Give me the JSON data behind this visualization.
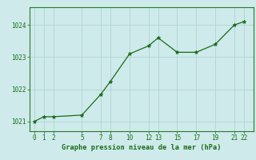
{
  "x": [
    0,
    1,
    2,
    5,
    7,
    8,
    10,
    12,
    13,
    15,
    17,
    19,
    21,
    22
  ],
  "y": [
    1021.0,
    1021.15,
    1021.15,
    1021.2,
    1021.85,
    1022.25,
    1023.1,
    1023.35,
    1023.6,
    1023.15,
    1023.15,
    1023.4,
    1024.0,
    1024.1
  ],
  "x_ticks": [
    0,
    1,
    2,
    5,
    7,
    8,
    10,
    12,
    13,
    15,
    17,
    19,
    21,
    22
  ],
  "y_ticks": [
    1021,
    1022,
    1023,
    1024
  ],
  "ylim": [
    1020.7,
    1024.55
  ],
  "xlim": [
    -0.5,
    23.0
  ],
  "line_color": "#1a6b1a",
  "marker": "*",
  "marker_size": 3.5,
  "background_color": "#ceeaea",
  "grid_color": "#afd4d4",
  "grid_linewidth": 0.6,
  "xlabel": "Graphe pression niveau de la mer (hPa)",
  "xlabel_color": "#1a6b1a",
  "tick_color": "#1a6b1a",
  "tick_fontsize": 5.5,
  "xlabel_fontsize": 6.2,
  "spine_color": "#2a7a2a",
  "linewidth": 0.9
}
